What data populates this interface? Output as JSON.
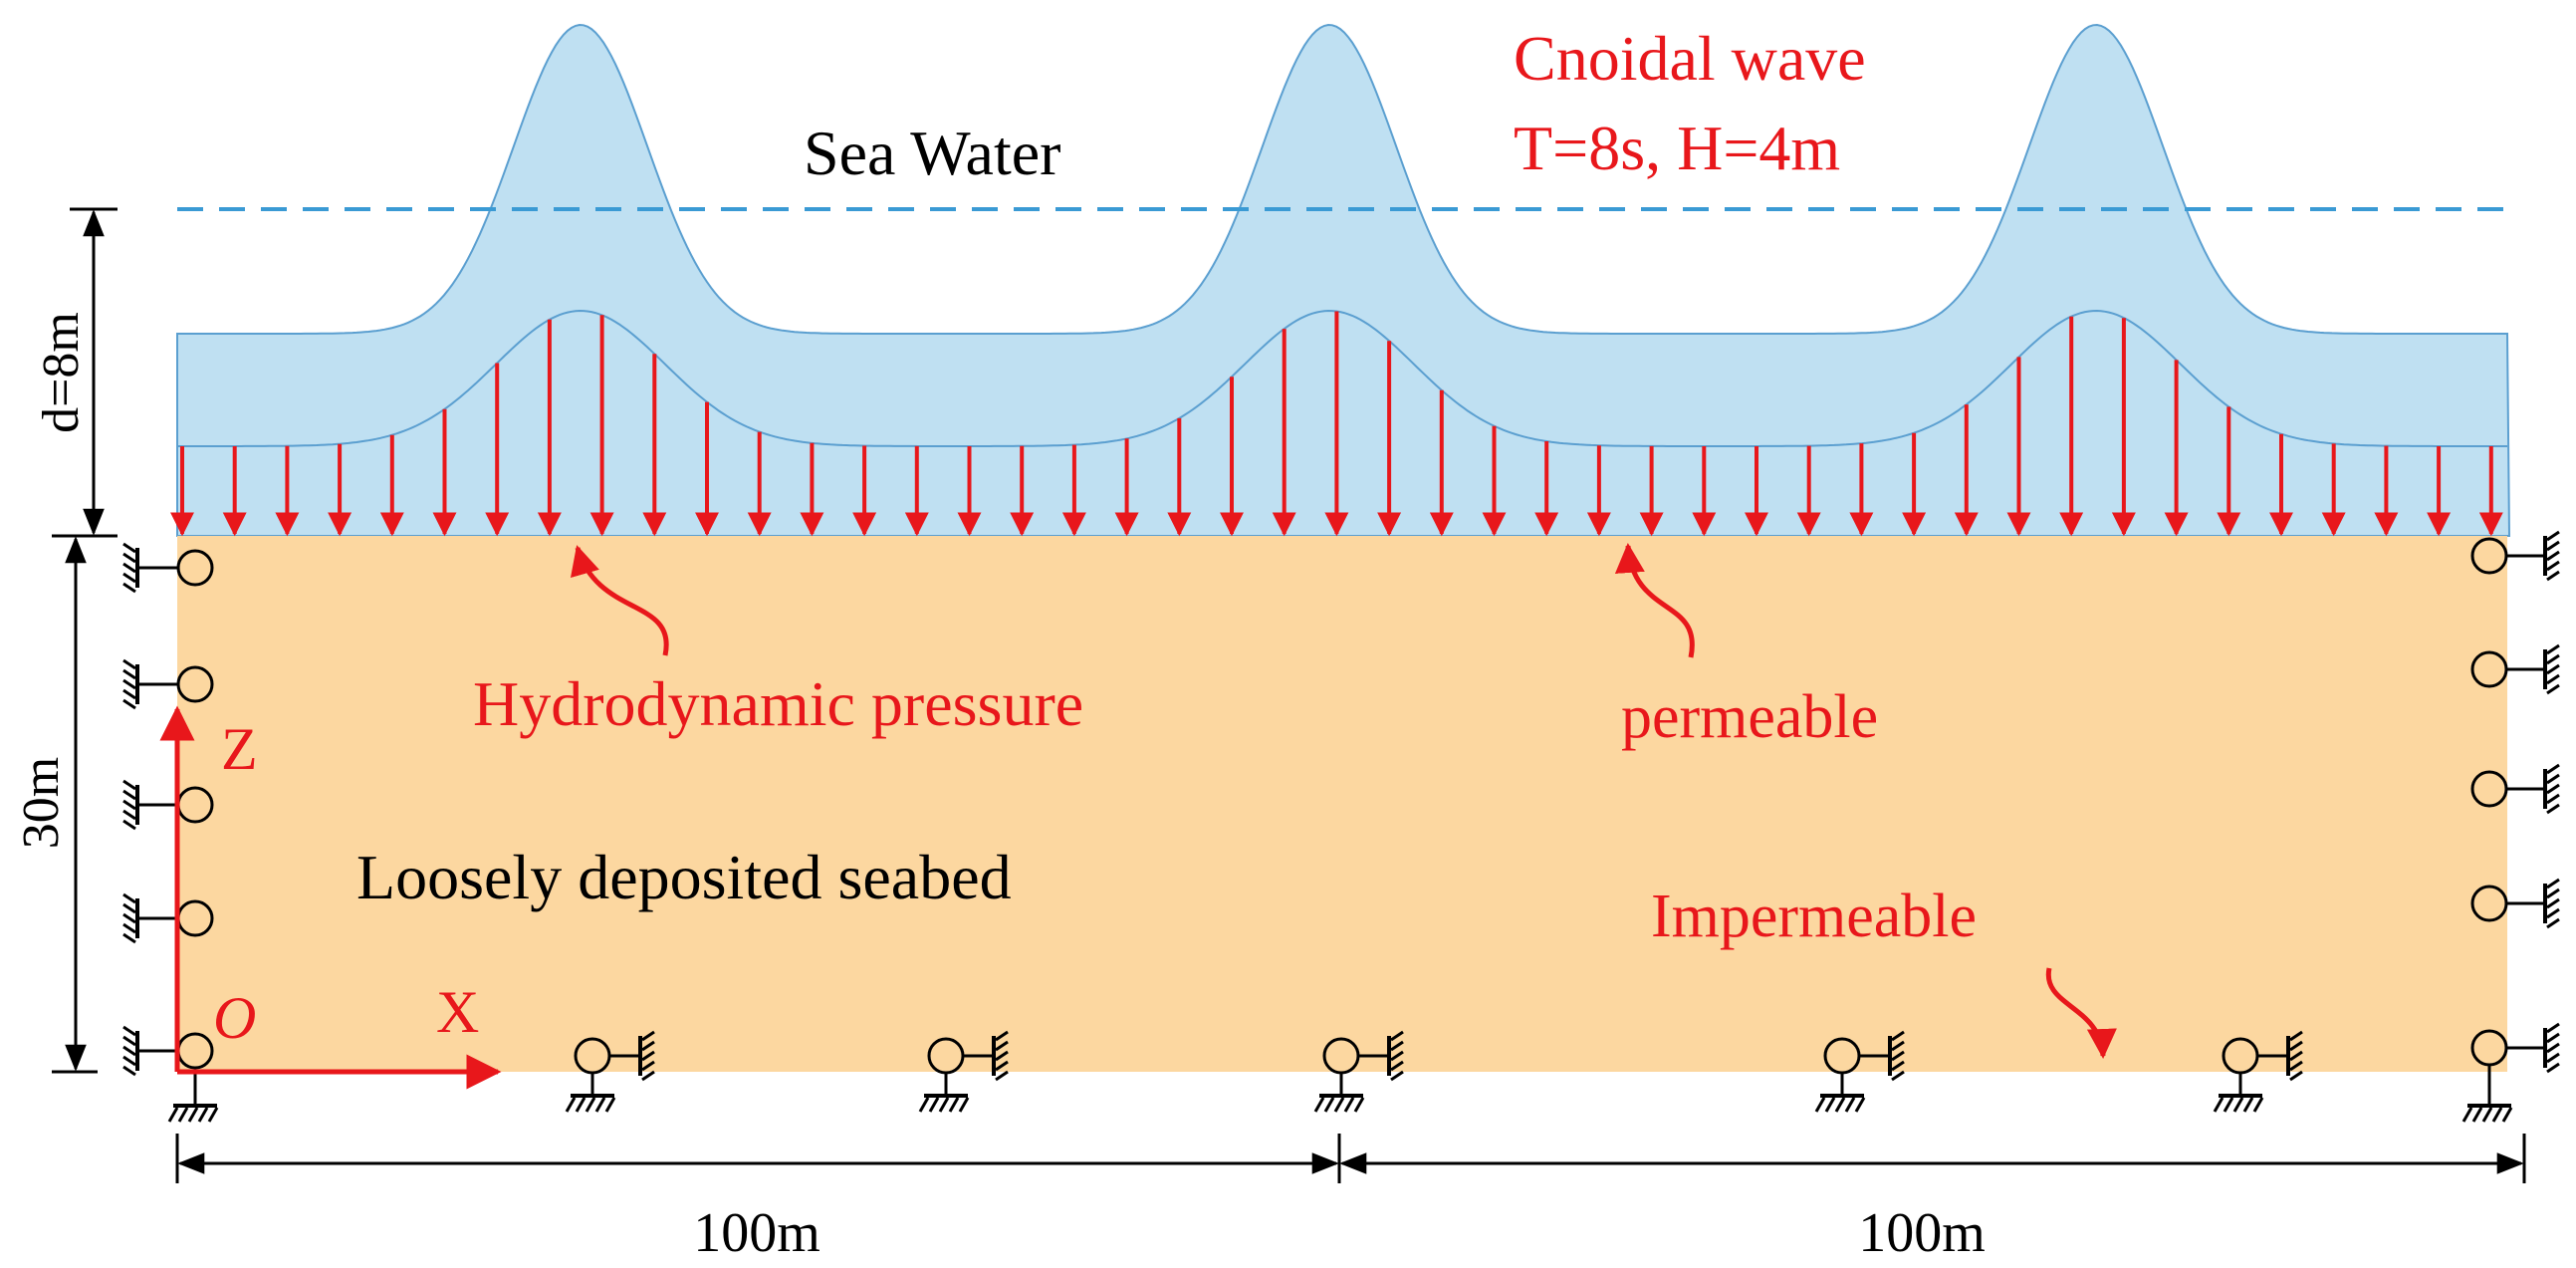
{
  "labels": {
    "sea_water": "Sea Water",
    "wave_title": "Cnoidal wave",
    "wave_params": "T=8s, H=4m",
    "depth": "d=8m",
    "seabed_depth": "30m",
    "hydro_pressure": "Hydrodynamic pressure",
    "permeable": "permeable",
    "seabed": "Loosely deposited seabed",
    "impermeable": "Impermeable",
    "axis_z": "Z",
    "axis_x": "X",
    "origin": "O",
    "span_left": "100m",
    "span_right": "100m"
  },
  "colors": {
    "water": "#bfe0f2",
    "water_stroke": "#5b9fd0",
    "seabed": "#fcd7a0",
    "red": "#e8171b",
    "mwl_dash": "#3a9ad4",
    "black": "#000000"
  },
  "icons": {
    "roller_support": "roller-support-icon",
    "ground_hatch": "ground-hatch-icon"
  }
}
